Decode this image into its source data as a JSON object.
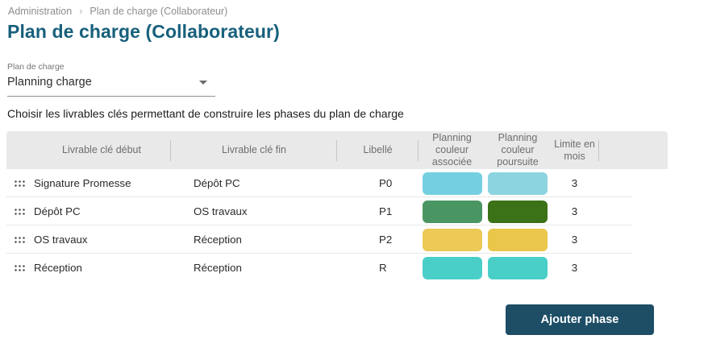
{
  "breadcrumb": {
    "items": [
      "Administration",
      "Plan de charge (Collaborateur)"
    ],
    "separator": "›"
  },
  "page_title": "Plan de charge (Collaborateur)",
  "select": {
    "label": "Plan de charge",
    "value": "Planning charge"
  },
  "instruction": "Choisir les livrables clés permettant de construire les phases du plan de charge",
  "table": {
    "columns": [
      "Livrable clé début",
      "Livrable clé fin",
      "Libellé",
      "Planning couleur associée",
      "Planning couleur poursuite",
      "Limite en mois"
    ],
    "rows": [
      {
        "start": "Signature Promesse",
        "end": "Dépôt PC",
        "label": "P0",
        "color_associee": "#74d0e0",
        "color_poursuite": "#8cd4df",
        "limit": "3"
      },
      {
        "start": "Dépôt PC",
        "end": "OS travaux",
        "label": "P1",
        "color_associee": "#4a9663",
        "color_poursuite": "#3b7217",
        "limit": "3"
      },
      {
        "start": "OS travaux",
        "end": "Réception",
        "label": "P2",
        "color_associee": "#edc955",
        "color_poursuite": "#eac64a",
        "limit": "3"
      },
      {
        "start": "Réception",
        "end": "Réception",
        "label": "R",
        "color_associee": "#4acfc8",
        "color_poursuite": "#4acfc8",
        "limit": "3"
      }
    ]
  },
  "button": {
    "label": "Ajouter phase"
  },
  "colors": {
    "title": "#17607c",
    "button_bg": "#1d4e66",
    "header_bg": "#e9e9e9",
    "breadcrumb_text": "#8d8d8d"
  }
}
